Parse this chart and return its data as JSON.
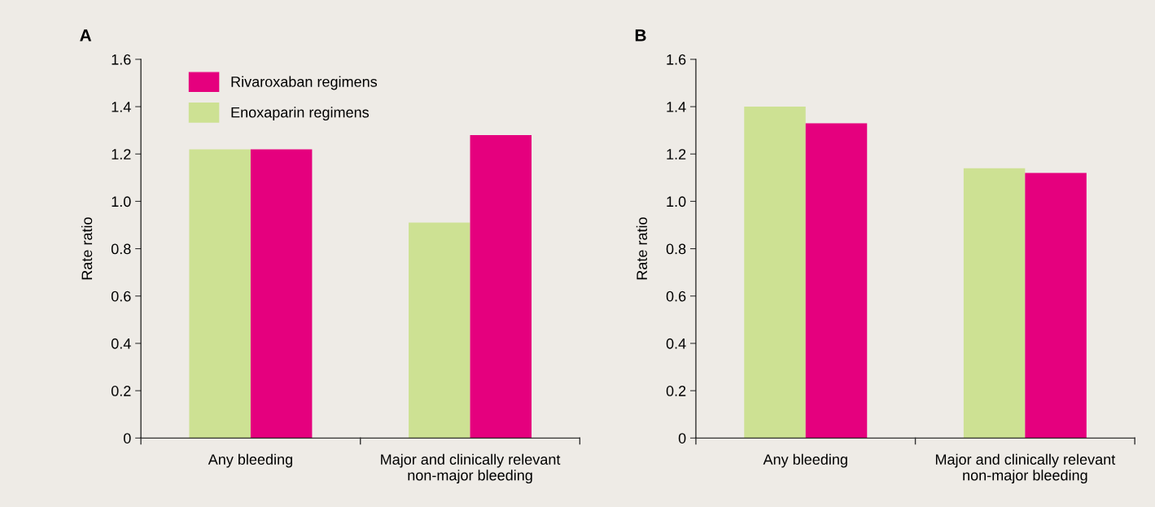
{
  "chart_data": [
    {
      "type": "bar",
      "title": "A",
      "ylabel": "Rate ratio",
      "categories": [
        "Any bleeding",
        "Major and clinically relevant\nnon-major bleeding"
      ],
      "series": [
        {
          "name": "Enoxaparin regimens",
          "color": "#cde193",
          "values": [
            1.22,
            0.91
          ]
        },
        {
          "name": "Rivaroxaban regimens",
          "color": "#e5007e",
          "values": [
            1.22,
            1.28
          ]
        }
      ],
      "ylim": [
        0,
        1.6
      ],
      "yticks": [
        {
          "value": 0,
          "label": "0"
        },
        {
          "value": 0.2,
          "label": "0.2"
        },
        {
          "value": 0.4,
          "label": "0.4"
        },
        {
          "value": 0.6,
          "label": "0.6"
        },
        {
          "value": 0.8,
          "label": "0.8"
        },
        {
          "value": 1.0,
          "label": "1.0"
        },
        {
          "value": 1.2,
          "label": "1.2"
        },
        {
          "value": 1.4,
          "label": "1.4"
        },
        {
          "value": 1.6,
          "label": "1.6"
        }
      ],
      "legend": "top left",
      "grid": false
    },
    {
      "type": "bar",
      "title": "B",
      "ylabel": "Rate ratio",
      "categories": [
        "Any bleeding",
        "Major and clinically relevant\nnon-major bleeding"
      ],
      "series": [
        {
          "color": "#cde193",
          "values": [
            1.4,
            1.14
          ]
        },
        {
          "color": "#e5007e",
          "values": [
            1.33,
            1.12
          ]
        }
      ],
      "ylim": [
        0,
        1.6
      ],
      "yticks": [
        {
          "value": 0,
          "label": "0"
        },
        {
          "value": 0.2,
          "label": "0.2"
        },
        {
          "value": 0.4,
          "label": "0.4"
        },
        {
          "value": 0.6,
          "label": "0.6"
        },
        {
          "value": 0.8,
          "label": "0.8"
        },
        {
          "value": 1.0,
          "label": "1.0"
        },
        {
          "value": 1.2,
          "label": "1.2"
        },
        {
          "value": 1.4,
          "label": "1.4"
        },
        {
          "value": 1.6,
          "label": "1.6"
        }
      ],
      "legend": false,
      "grid": false
    }
  ]
}
